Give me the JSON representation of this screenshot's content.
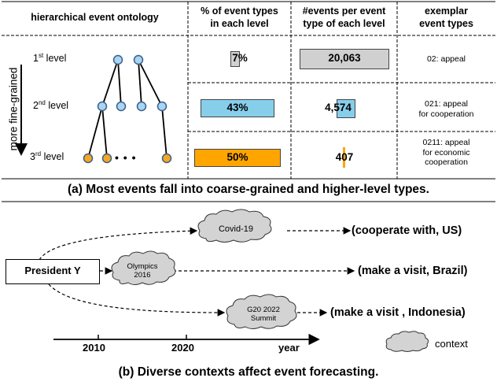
{
  "table": {
    "headers": {
      "ontology": "hierarchical event ontology",
      "percent": [
        "% of event types",
        "in each level"
      ],
      "events": [
        "#events per event",
        "type of each level"
      ],
      "exemplar": [
        "exemplar",
        "event types"
      ]
    },
    "axis_label": "more fine-grained",
    "levels": [
      {
        "num": "1",
        "suffix": "st",
        "word": "level",
        "percent": 7,
        "percent_label": "7%",
        "events": 20063,
        "events_label": "20,063",
        "exemplar": [
          "02: appeal"
        ]
      },
      {
        "num": "2",
        "suffix": "nd",
        "word": "level",
        "percent": 43,
        "percent_label": "43%",
        "events": 4574,
        "events_label": "4,574",
        "exemplar": [
          "021: appeal",
          "for cooperation"
        ]
      },
      {
        "num": "3",
        "suffix": "rd",
        "word": "level",
        "percent": 50,
        "percent_label": "50%",
        "events": 407,
        "events_label": "407",
        "exemplar": [
          "0211: appeal",
          "for economic",
          "cooperation"
        ]
      }
    ],
    "ellipsis": "• • •",
    "colors": {
      "level1": "#d0d0d0",
      "level2": "#87ceeb",
      "level3": "#ffa500",
      "node_blue": "#a9d4f2",
      "node_orange": "#f5a623"
    }
  },
  "caption_a": "(a) Most events fall into coarse-grained and higher-level types.",
  "timeline": {
    "actor": "President Y",
    "contexts": [
      "Covid-19",
      "Olympics 2016",
      "G20 2022 Summit"
    ],
    "outcomes": [
      "(cooperate with, US)",
      "(make a visit, Brazil)",
      "(make a visit , Indonesia)"
    ],
    "years": [
      "2010",
      "2020"
    ],
    "axis_label": "year",
    "legend": "context",
    "colors": {
      "cloud": "#d3d3d3"
    }
  },
  "caption_b": "(b) Diverse contexts affect event forecasting."
}
